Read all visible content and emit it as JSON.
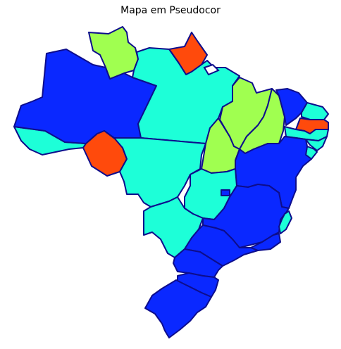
{
  "title": "Mapa em Pseudocor",
  "colors": {
    "blue": "#0a28ff",
    "cyan": "#1dffd8",
    "green": "#a0ff50",
    "orange": "#ff4a0c",
    "border": "#0d0d8c",
    "background": "#ffffff"
  },
  "states": [
    {
      "name": "Roraima",
      "color": "green"
    },
    {
      "name": "Amapá",
      "color": "orange"
    },
    {
      "name": "Amazonas",
      "color": "blue"
    },
    {
      "name": "Acre",
      "color": "cyan"
    },
    {
      "name": "Rondônia",
      "color": "orange"
    },
    {
      "name": "Pará",
      "color": "cyan"
    },
    {
      "name": "Mato Grosso",
      "color": "cyan"
    },
    {
      "name": "Maranhão",
      "color": "green"
    },
    {
      "name": "Piauí",
      "color": "green"
    },
    {
      "name": "Tocantins",
      "color": "green"
    },
    {
      "name": "Ceará",
      "color": "blue"
    },
    {
      "name": "Rio Grande do Norte",
      "color": "cyan"
    },
    {
      "name": "Paraíba",
      "color": "orange"
    },
    {
      "name": "Pernambuco",
      "color": "cyan"
    },
    {
      "name": "Alagoas",
      "color": "cyan"
    },
    {
      "name": "Sergipe",
      "color": "cyan"
    },
    {
      "name": "Bahia",
      "color": "blue"
    },
    {
      "name": "Goiás",
      "color": "cyan"
    },
    {
      "name": "Distrito Federal",
      "color": "blue"
    },
    {
      "name": "Mato Grosso do Sul",
      "color": "cyan"
    },
    {
      "name": "Minas Gerais",
      "color": "blue"
    },
    {
      "name": "Espírito Santo",
      "color": "cyan"
    },
    {
      "name": "Rio de Janeiro",
      "color": "blue"
    },
    {
      "name": "São Paulo",
      "color": "blue"
    },
    {
      "name": "Paraná",
      "color": "blue"
    },
    {
      "name": "Santa Catarina",
      "color": "blue"
    },
    {
      "name": "Rio Grande do Sul",
      "color": "blue"
    }
  ]
}
